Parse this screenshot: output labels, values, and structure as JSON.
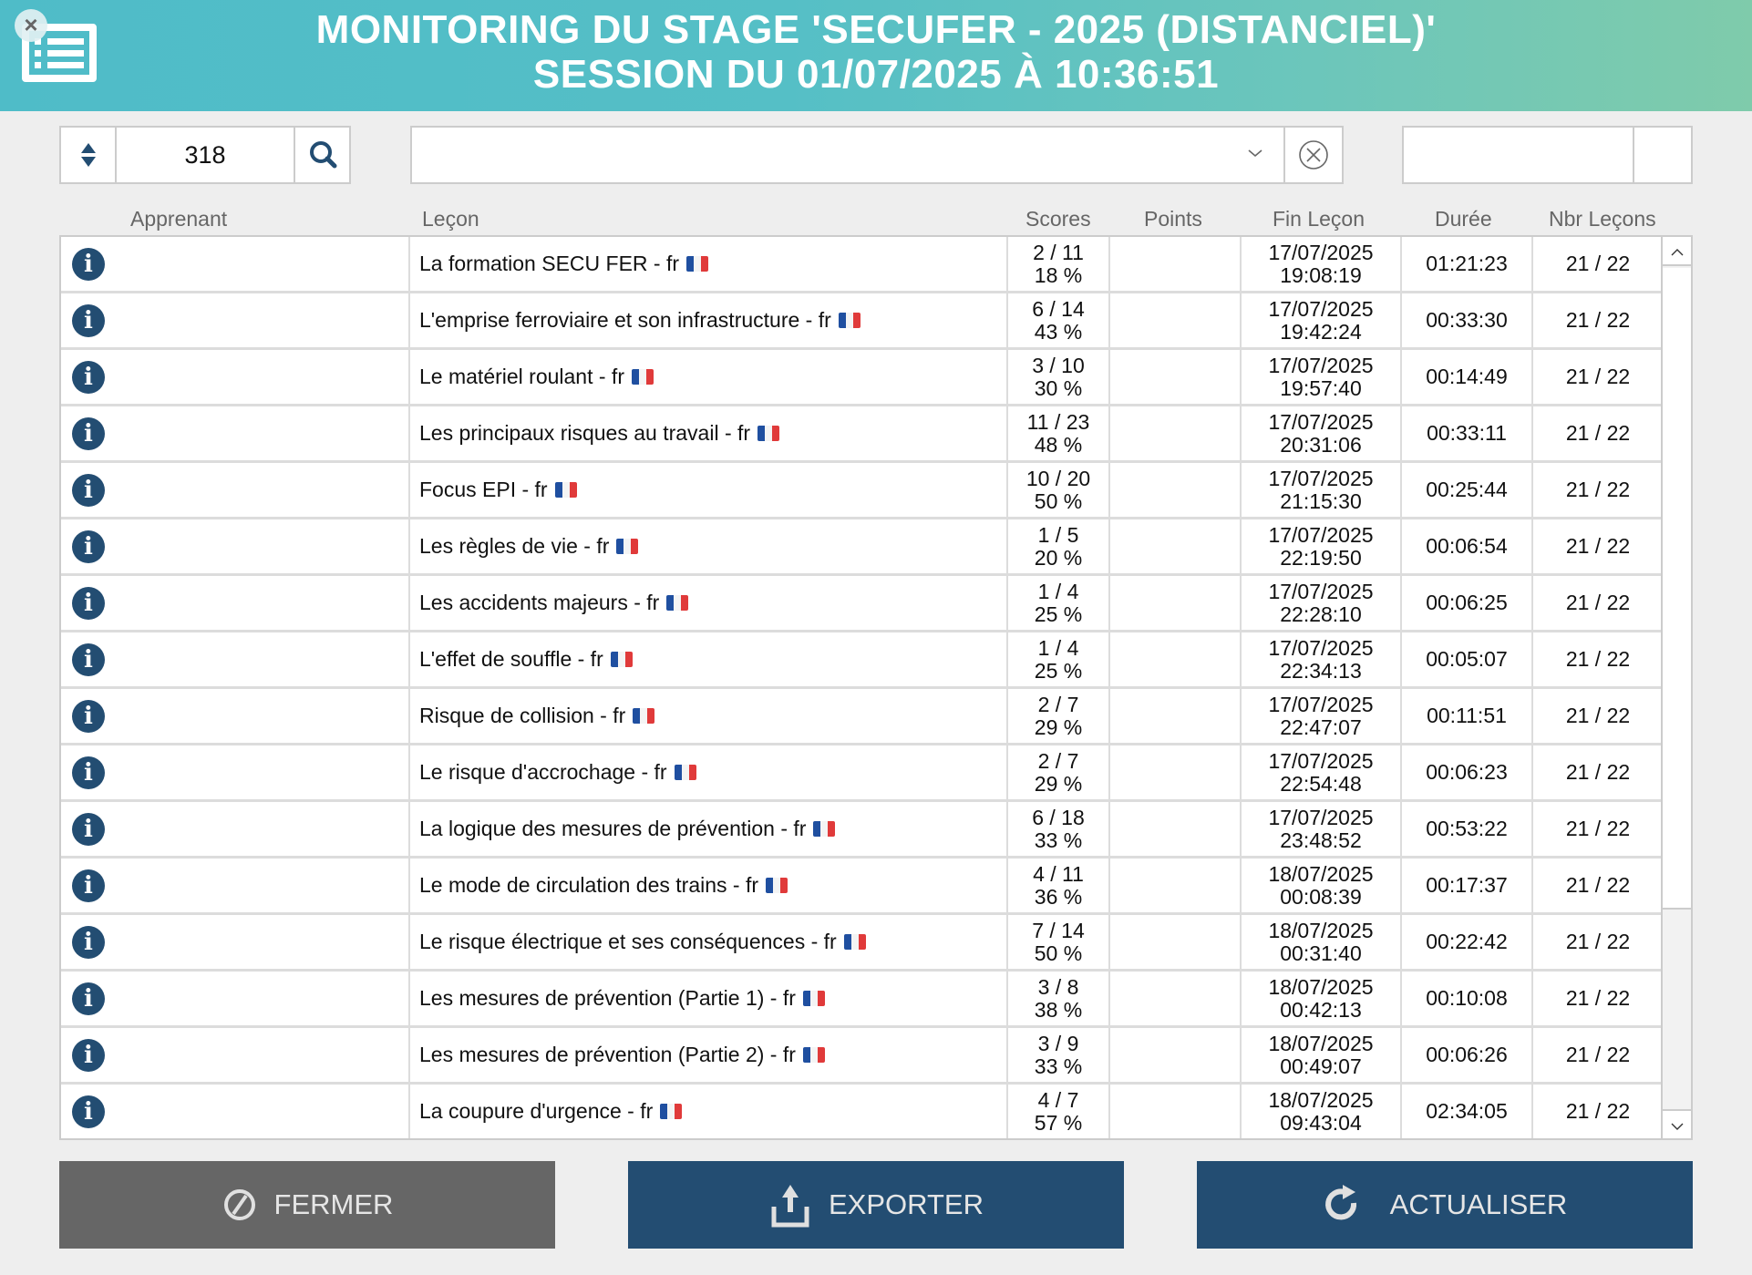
{
  "header": {
    "title_line1": "MONITORING DU STAGE 'SECUFER - 2025 (DISTANCIEL)'",
    "title_line2": "SESSION DU 01/07/2025 À 10:36:51",
    "app_icon": "list-icon",
    "close_icon": "close-icon",
    "gradient": [
      "#4fbcc8",
      "#7fcbab"
    ]
  },
  "toolbar": {
    "stepper_value": "318",
    "stepper_icon": "sort-arrows-icon",
    "search_icon": "search-icon",
    "dropdown_value": "",
    "dropdown_icon": "chevron-down-icon",
    "clear_icon": "clear-circle-x-icon",
    "right_input_value": ""
  },
  "columns": {
    "apprenant": "Apprenant",
    "lecon": "Leçon",
    "scores": "Scores",
    "points": "Points",
    "fin_lecon": "Fin Leçon",
    "duree": "Durée",
    "nbr_lecons": "Nbr Leçons"
  },
  "rows": [
    {
      "apprenant": "",
      "lecon": "La formation SECU FER - fr",
      "score": "2 / 11",
      "pct": "18 %",
      "points": "",
      "date": "17/07/2025",
      "time": "19:08:19",
      "duree": "01:21:23",
      "nbr": "21 / 22"
    },
    {
      "apprenant": "",
      "lecon": "L'emprise ferroviaire et son infrastructure - fr",
      "score": "6 / 14",
      "pct": "43 %",
      "points": "",
      "date": "17/07/2025",
      "time": "19:42:24",
      "duree": "00:33:30",
      "nbr": "21 / 22"
    },
    {
      "apprenant": "",
      "lecon": "Le matériel roulant - fr",
      "score": "3 / 10",
      "pct": "30 %",
      "points": "",
      "date": "17/07/2025",
      "time": "19:57:40",
      "duree": "00:14:49",
      "nbr": "21 / 22"
    },
    {
      "apprenant": "",
      "lecon": "Les principaux risques au travail - fr",
      "score": "11 / 23",
      "pct": "48 %",
      "points": "",
      "date": "17/07/2025",
      "time": "20:31:06",
      "duree": "00:33:11",
      "nbr": "21 / 22"
    },
    {
      "apprenant": "",
      "lecon": "Focus EPI - fr",
      "score": "10 / 20",
      "pct": "50 %",
      "points": "",
      "date": "17/07/2025",
      "time": "21:15:30",
      "duree": "00:25:44",
      "nbr": "21 / 22"
    },
    {
      "apprenant": "",
      "lecon": "Les règles de vie - fr",
      "score": "1 / 5",
      "pct": "20 %",
      "points": "",
      "date": "17/07/2025",
      "time": "22:19:50",
      "duree": "00:06:54",
      "nbr": "21 / 22"
    },
    {
      "apprenant": "",
      "lecon": "Les accidents majeurs - fr",
      "score": "1 / 4",
      "pct": "25 %",
      "points": "",
      "date": "17/07/2025",
      "time": "22:28:10",
      "duree": "00:06:25",
      "nbr": "21 / 22"
    },
    {
      "apprenant": "",
      "lecon": "L'effet de souffle - fr",
      "score": "1 / 4",
      "pct": "25 %",
      "points": "",
      "date": "17/07/2025",
      "time": "22:34:13",
      "duree": "00:05:07",
      "nbr": "21 / 22"
    },
    {
      "apprenant": "",
      "lecon": "Risque de collision - fr",
      "score": "2 / 7",
      "pct": "29 %",
      "points": "",
      "date": "17/07/2025",
      "time": "22:47:07",
      "duree": "00:11:51",
      "nbr": "21 / 22"
    },
    {
      "apprenant": "",
      "lecon": "Le risque d'accrochage - fr",
      "score": "2 / 7",
      "pct": "29 %",
      "points": "",
      "date": "17/07/2025",
      "time": "22:54:48",
      "duree": "00:06:23",
      "nbr": "21 / 22"
    },
    {
      "apprenant": "",
      "lecon": "La logique des mesures de prévention - fr",
      "score": "6 / 18",
      "pct": "33 %",
      "points": "",
      "date": "17/07/2025",
      "time": "23:48:52",
      "duree": "00:53:22",
      "nbr": "21 / 22"
    },
    {
      "apprenant": "",
      "lecon": "Le mode de circulation des trains - fr",
      "score": "4 / 11",
      "pct": "36 %",
      "points": "",
      "date": "18/07/2025",
      "time": "00:08:39",
      "duree": "00:17:37",
      "nbr": "21 / 22"
    },
    {
      "apprenant": "",
      "lecon": "Le risque électrique et ses conséquences - fr",
      "score": "7 / 14",
      "pct": "50 %",
      "points": "",
      "date": "18/07/2025",
      "time": "00:31:40",
      "duree": "00:22:42",
      "nbr": "21 / 22"
    },
    {
      "apprenant": "",
      "lecon": "Les mesures de prévention (Partie 1) - fr",
      "score": "3 / 8",
      "pct": "38 %",
      "points": "",
      "date": "18/07/2025",
      "time": "00:42:13",
      "duree": "00:10:08",
      "nbr": "21 / 22"
    },
    {
      "apprenant": "",
      "lecon": "Les mesures de prévention (Partie 2) - fr",
      "score": "3 / 9",
      "pct": "33 %",
      "points": "",
      "date": "18/07/2025",
      "time": "00:49:07",
      "duree": "00:06:26",
      "nbr": "21 / 22"
    },
    {
      "apprenant": "",
      "lecon": "La coupure d'urgence - fr",
      "score": "4 / 7",
      "pct": "57 %",
      "points": "",
      "date": "18/07/2025",
      "time": "09:43:04",
      "duree": "02:34:05",
      "nbr": "21 / 22"
    }
  ],
  "row_icons": {
    "info": "info-icon",
    "flag": "french-flag-icon"
  },
  "buttons": {
    "fermer": {
      "label": "FERMER",
      "icon": "cancel-circle-icon",
      "color": "#666666"
    },
    "exporter": {
      "label": "EXPORTER",
      "icon": "upload-icon",
      "color": "#234d72"
    },
    "actualiser": {
      "label": "ACTUALISER",
      "icon": "refresh-icon",
      "color": "#234d72"
    }
  },
  "scrollbar": {
    "up": "^",
    "down": "v"
  }
}
